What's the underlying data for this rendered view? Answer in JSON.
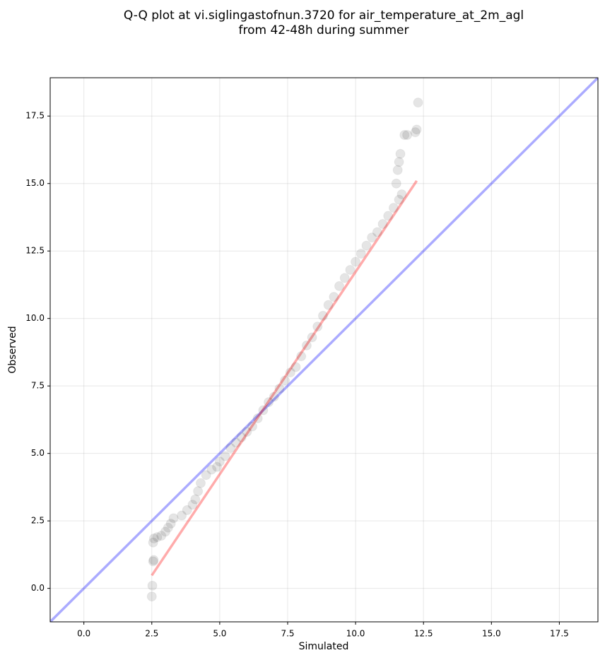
{
  "chart_data": {
    "type": "scatter",
    "title": [
      "Q-Q plot at vi.siglingastofnun.3720 for air_temperature_at_2m_agl",
      "from 42-48h during summer"
    ],
    "xlabel": "Simulated",
    "ylabel": "Observed",
    "xlim": [
      -1.24,
      18.92
    ],
    "ylim": [
      -1.24,
      18.92
    ],
    "xticks": [
      {
        "value": 0,
        "label": "0.0"
      },
      2.5,
      {
        "value": 5,
        "label": "5.0"
      },
      7.5,
      {
        "value": 10,
        "label": "10.0"
      },
      12.5,
      {
        "value": 15,
        "label": "15.0"
      },
      17.5
    ],
    "yticks": [
      {
        "value": 0,
        "label": "0.0"
      },
      2.5,
      {
        "value": 5,
        "label": "5.0"
      },
      7.5,
      {
        "value": 10,
        "label": "10.0"
      },
      12.5,
      {
        "value": 15,
        "label": "15.0"
      },
      17.5
    ],
    "grid": true,
    "lines": [
      {
        "color": "#0000ff",
        "x": [
          -1.24,
          18.92
        ],
        "y": [
          -1.24,
          18.92
        ]
      },
      {
        "color": "#ff0000",
        "x": [
          2.5,
          12.25
        ],
        "y": [
          0.48,
          15.1
        ]
      }
    ],
    "series": [
      {
        "color": "#000000",
        "x": [
          2.5,
          2.52,
          2.55,
          2.57,
          2.55,
          2.58,
          2.7,
          2.85,
          3.0,
          3.1,
          3.2,
          3.3,
          3.6,
          3.8,
          4.0,
          4.1,
          4.2,
          4.3,
          4.5,
          4.7,
          4.9,
          5.0,
          5.2,
          5.4,
          5.6,
          5.8,
          6.0,
          6.2,
          6.4,
          6.6,
          6.8,
          7.0,
          7.2,
          7.4,
          7.6,
          7.8,
          8.0,
          8.2,
          8.4,
          8.6,
          8.8,
          9.0,
          9.2,
          9.4,
          9.6,
          9.8,
          10.0,
          10.2,
          10.4,
          10.6,
          10.8,
          11.0,
          11.2,
          11.4,
          11.6,
          11.7,
          11.5,
          11.55,
          11.6,
          11.65,
          11.8,
          11.9,
          12.2,
          12.25,
          12.3
        ],
        "y": [
          -0.3,
          0.1,
          1.0,
          1.05,
          1.7,
          1.85,
          1.9,
          1.95,
          2.1,
          2.25,
          2.4,
          2.6,
          2.7,
          2.9,
          3.1,
          3.3,
          3.6,
          3.9,
          4.2,
          4.4,
          4.5,
          4.7,
          4.9,
          5.2,
          5.4,
          5.6,
          5.8,
          6.0,
          6.3,
          6.6,
          6.9,
          7.1,
          7.4,
          7.7,
          8.0,
          8.2,
          8.6,
          9.0,
          9.3,
          9.7,
          10.1,
          10.5,
          10.8,
          11.2,
          11.5,
          11.8,
          12.1,
          12.4,
          12.7,
          13.0,
          13.2,
          13.5,
          13.8,
          14.1,
          14.4,
          14.6,
          15.0,
          15.5,
          15.8,
          16.1,
          16.8,
          16.8,
          16.9,
          17.0,
          18.0
        ]
      }
    ]
  }
}
